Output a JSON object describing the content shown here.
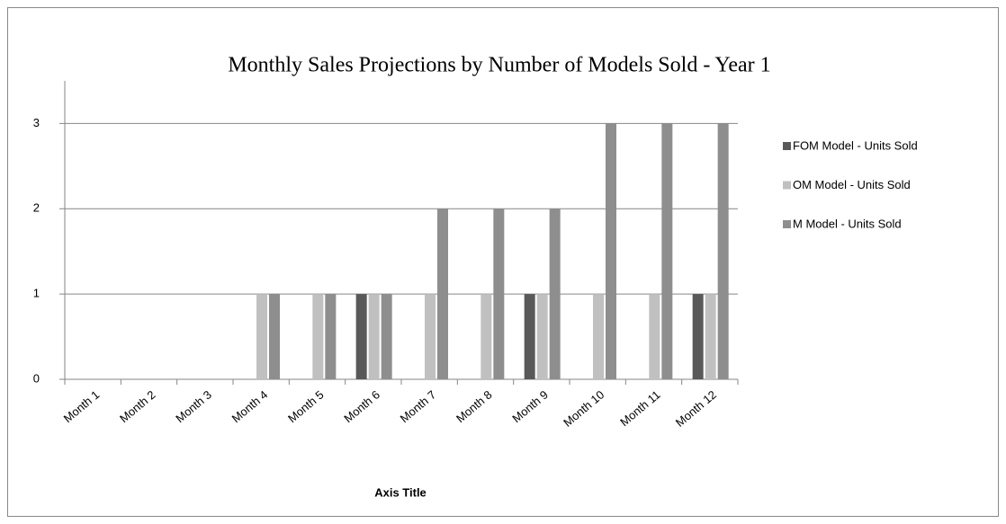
{
  "chart_data": {
    "type": "bar",
    "title": "Monthly Sales Projections by Number of Models Sold - Year 1",
    "x_label": "Axis Title",
    "categories": [
      "Month 1",
      "Month 2",
      "Month 3",
      "Month 4",
      "Month 5",
      "Month 6",
      "Month 7",
      "Month 8",
      "Month 9",
      "Month 10",
      "Month 11",
      "Month 12"
    ],
    "series": [
      {
        "name": "FOM Model - Units Sold",
        "color": "#595959",
        "values": [
          0,
          0,
          0,
          0,
          0,
          1,
          0,
          0,
          1,
          0,
          0,
          1
        ]
      },
      {
        "name": "OM Model - Units Sold",
        "color": "#c0c0c0",
        "values": [
          0,
          0,
          0,
          1,
          1,
          1,
          1,
          1,
          1,
          1,
          1,
          1
        ]
      },
      {
        "name": "M Model - Units Sold",
        "color": "#8e8e8e",
        "values": [
          0,
          0,
          0,
          1,
          1,
          1,
          2,
          2,
          2,
          3,
          3,
          3
        ]
      }
    ],
    "ylim": [
      0,
      3.5
    ],
    "yticks": [
      0,
      1,
      2,
      3
    ],
    "grid": true,
    "legend": "right"
  }
}
